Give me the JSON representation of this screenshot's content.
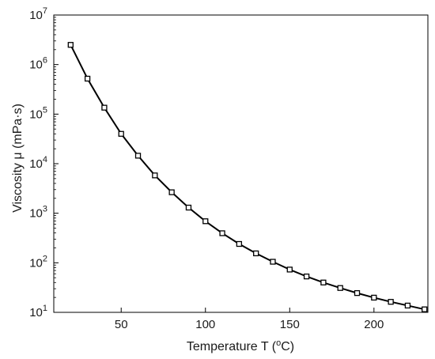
{
  "chart_data": {
    "type": "line",
    "title": "",
    "xlabel": "Temperature T (°C)",
    "xlabel_parts": {
      "prefix": "Temperature T (",
      "superscript": "o",
      "suffix": "C)"
    },
    "ylabel": "Viscosity  μ  (mPa·s)",
    "xlim": [
      10,
      232
    ],
    "ylim": [
      10,
      10000000
    ],
    "yscale": "log",
    "grid": false,
    "legend": "none",
    "marker": "square",
    "line_color": "#000000",
    "x_ticks": [
      {
        "value": 50,
        "label": "50"
      },
      {
        "value": 100,
        "label": "100"
      },
      {
        "value": 150,
        "label": "150"
      },
      {
        "value": 200,
        "label": "200"
      }
    ],
    "y_ticks": [
      {
        "value": 10,
        "base": "10",
        "exp": "1"
      },
      {
        "value": 100,
        "base": "10",
        "exp": "2"
      },
      {
        "value": 1000,
        "base": "10",
        "exp": "3"
      },
      {
        "value": 10000,
        "base": "10",
        "exp": "4"
      },
      {
        "value": 100000,
        "base": "10",
        "exp": "5"
      },
      {
        "value": 1000000,
        "base": "10",
        "exp": "6"
      },
      {
        "value": 10000000,
        "base": "10",
        "exp": "7"
      }
    ],
    "series": [
      {
        "x": [
          20,
          30,
          40,
          50,
          60,
          70,
          80,
          90,
          100,
          110,
          120,
          130,
          140,
          150,
          160,
          170,
          180,
          190,
          200,
          210,
          220,
          230
        ],
        "y": [
          2500000,
          520000,
          135000,
          40000,
          14500,
          5800,
          2650,
          1300,
          690,
          395,
          240,
          155,
          105,
          73,
          53,
          40,
          31,
          24.5,
          19.8,
          16.3,
          13.7,
          11.5
        ]
      }
    ]
  }
}
